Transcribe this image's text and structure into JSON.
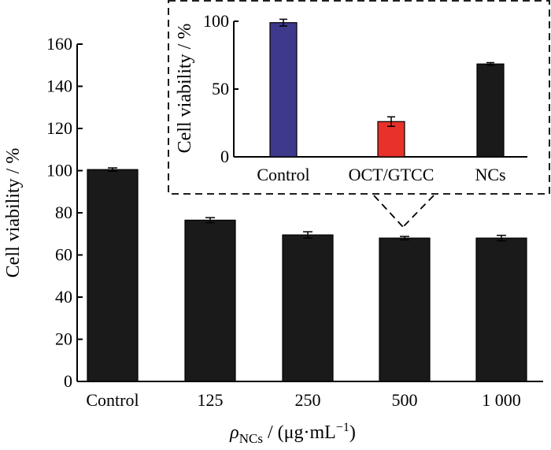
{
  "chart_data": [
    {
      "id": "main",
      "type": "bar",
      "categories": [
        "Control",
        "125",
        "250",
        "500",
        "1 000"
      ],
      "values": [
        100.5,
        76.5,
        69.5,
        68.0,
        68.0
      ],
      "errors": [
        0.8,
        1.2,
        1.5,
        0.8,
        1.3
      ],
      "ylabel": "Cell viability / %",
      "xlabel_parts": {
        "rho": "ρ",
        "sub": "NCs",
        "unit": " / (μg·mL",
        "sup": "−1",
        "close": ")"
      },
      "ylim": [
        0,
        160
      ],
      "yticks": [
        0,
        20,
        40,
        60,
        80,
        100,
        120,
        140,
        160
      ],
      "bar_color": "#1a1a1a",
      "grid": false
    },
    {
      "id": "inset",
      "type": "bar",
      "categories": [
        "Control",
        "OCT/GTCC",
        "NCs"
      ],
      "values": [
        99.0,
        26.0,
        68.5
      ],
      "errors": [
        2.5,
        3.5,
        1.0
      ],
      "colors": [
        "#3d3a8c",
        "#e8312a",
        "#1a1a1a"
      ],
      "ylabel": "Cell viability / %",
      "ylim": [
        0,
        100
      ],
      "yticks": [
        0,
        50,
        100
      ],
      "zooms_category": "500",
      "grid": false
    }
  ]
}
